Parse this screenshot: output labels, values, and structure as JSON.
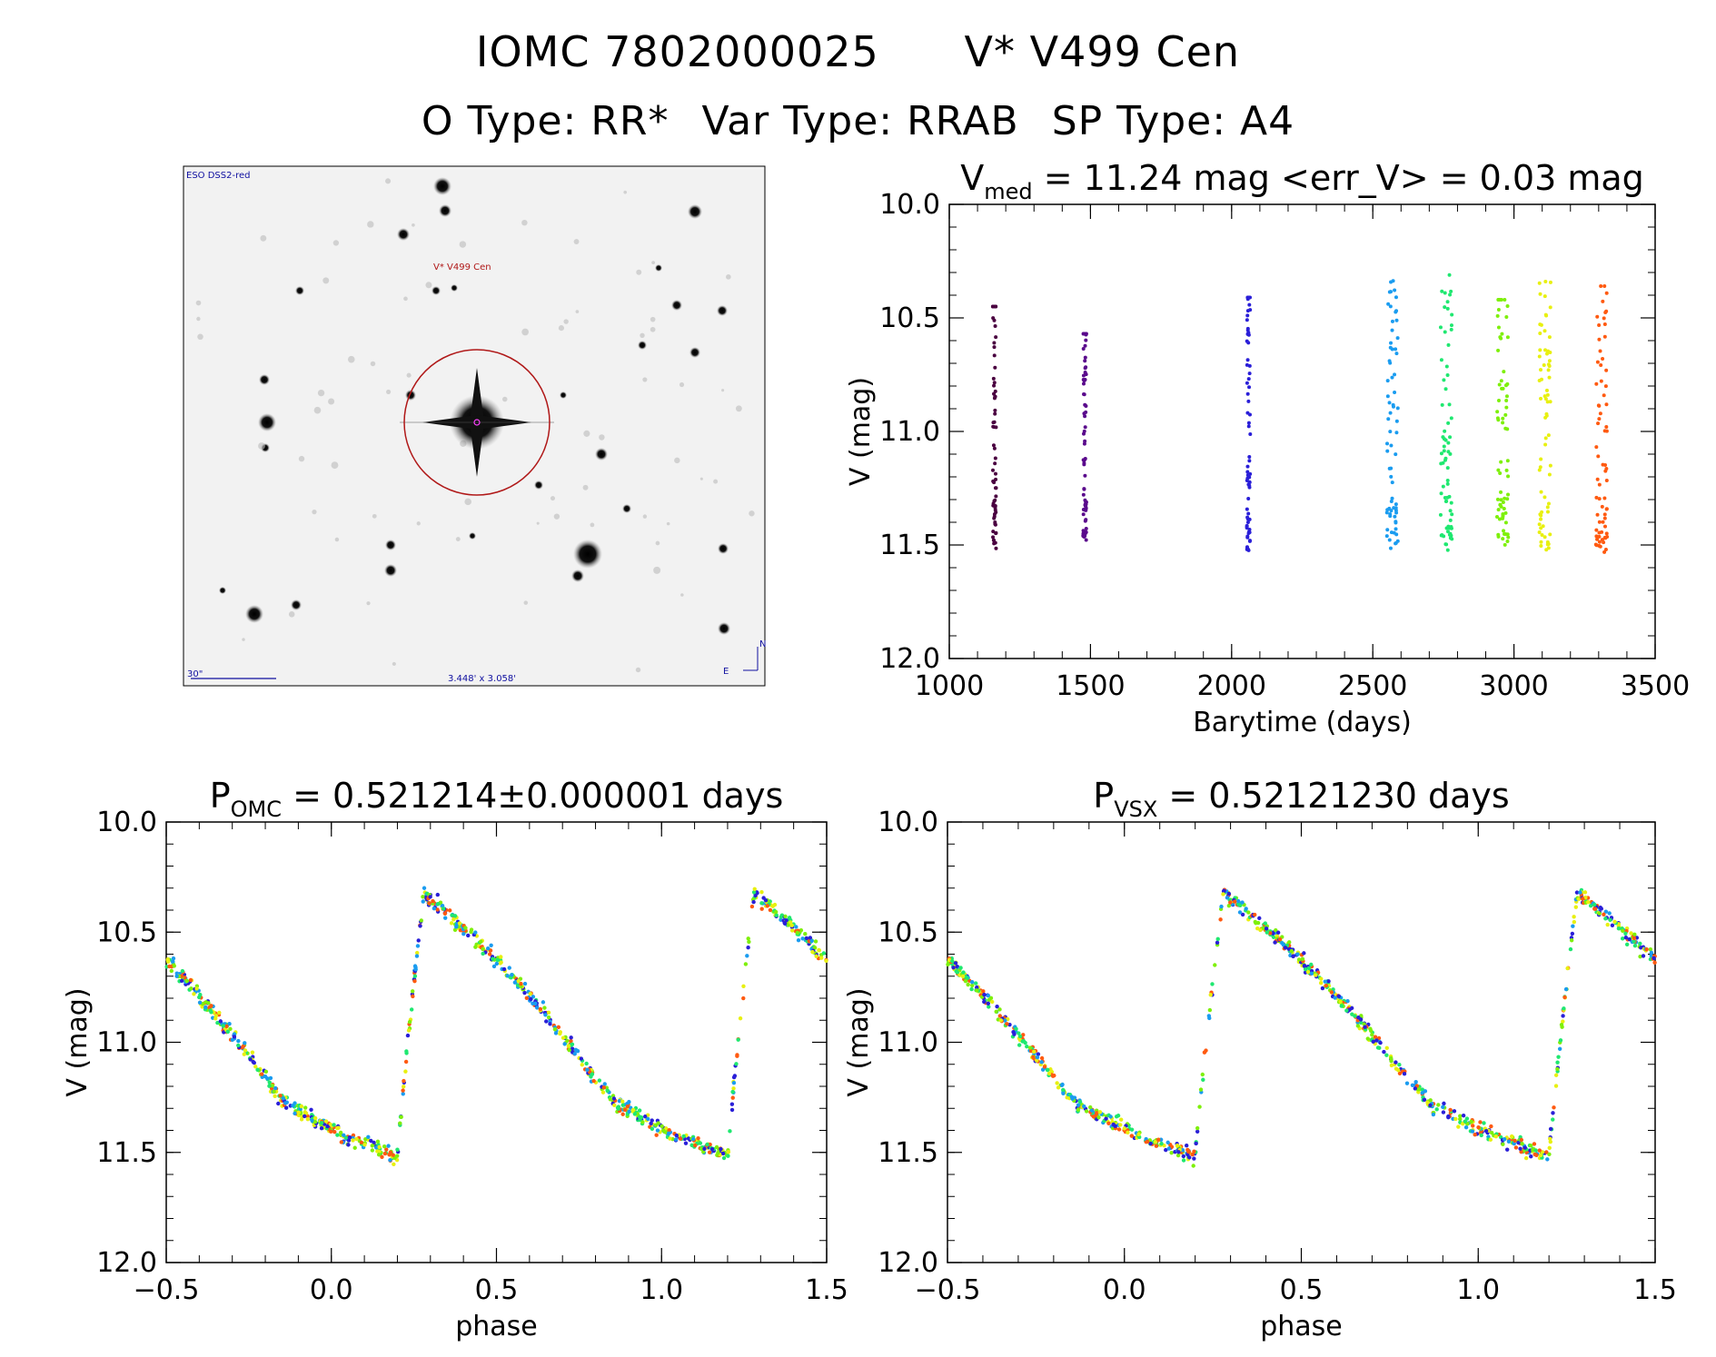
{
  "header": {
    "line1_left": "IOMC 7802000025",
    "line1_right": "V* V499 Cen",
    "o_type": "O Type: RR*",
    "var_type": "Var Type: RRAB",
    "sp_type": "SP Type: A4"
  },
  "finder": {
    "survey_label": "ESO DSS2-red",
    "object_label": "V* V499 Cen",
    "scale_label": "30\"",
    "fov_label": "3.448' x 3.058'",
    "east_label": "E",
    "north_label": "N"
  },
  "colors": {
    "seasons": [
      "#4a0040",
      "#5a0a8c",
      "#2a1fd8",
      "#1a9cf0",
      "#1fe870",
      "#7ef00a",
      "#e8f010",
      "#ff5a10"
    ],
    "circle": "#b01818",
    "finder_text": "#1010a0"
  },
  "chart_data": [
    {
      "type": "scatter",
      "title_main": "V",
      "title_sub": "med",
      "title_rest": " = 11.24 mag <err_V> = 0.03 mag",
      "xlabel": "Barytime (days)",
      "ylabel": "V (mag)",
      "xlim": [
        1000,
        3500
      ],
      "ylim": [
        12.0,
        10.0
      ],
      "xticks": [
        "1000",
        "1500",
        "2000",
        "2500",
        "3000",
        "3500"
      ],
      "yticks": [
        "10.0",
        "10.5",
        "11.0",
        "11.5",
        "12.0"
      ],
      "series": [
        {
          "x": 1160,
          "ymin": 10.45,
          "ymax": 11.58
        },
        {
          "x": 1480,
          "ymin": 10.57,
          "ymax": 11.5
        },
        {
          "x": 2060,
          "ymin": 10.41,
          "ymax": 11.56
        },
        {
          "x": 2570,
          "ymin": 10.29,
          "ymax": 11.73
        },
        {
          "x": 2760,
          "ymin": 10.31,
          "ymax": 11.72
        },
        {
          "x": 2960,
          "ymin": 10.42,
          "ymax": 11.53
        },
        {
          "x": 3110,
          "ymin": 10.34,
          "ymax": 11.54
        },
        {
          "x": 3310,
          "ymin": 10.36,
          "ymax": 11.58
        }
      ]
    },
    {
      "type": "scatter",
      "title_main": "P",
      "title_sub": "OMC",
      "title_rest": " = 0.521214±0.000001 days",
      "xlabel": "phase",
      "ylabel": "V (mag)",
      "xlim": [
        -0.5,
        1.5
      ],
      "ylim": [
        12.0,
        10.0
      ],
      "xticks": [
        "−0.5",
        "0.0",
        "0.5",
        "1.0",
        "1.5"
      ],
      "yticks": [
        "10.0",
        "10.5",
        "11.0",
        "11.5",
        "12.0"
      ],
      "curve": {
        "min_phase": 0.2,
        "max_phase": 0.28,
        "min_mag": 11.52,
        "max_mag": 10.32,
        "plateau_mag": 11.45
      }
    },
    {
      "type": "scatter",
      "title_main": "P",
      "title_sub": "VSX",
      "title_rest": " = 0.52121230 days",
      "xlabel": "phase",
      "ylabel": "V (mag)",
      "xlim": [
        -0.5,
        1.5
      ],
      "ylim": [
        12.0,
        10.0
      ],
      "xticks": [
        "−0.5",
        "0.0",
        "0.5",
        "1.0",
        "1.5"
      ],
      "yticks": [
        "10.0",
        "10.5",
        "11.0",
        "11.5",
        "12.0"
      ],
      "curve": {
        "min_phase": 0.2,
        "max_phase": 0.28,
        "min_mag": 11.52,
        "max_mag": 10.32,
        "plateau_mag": 11.45
      }
    }
  ]
}
